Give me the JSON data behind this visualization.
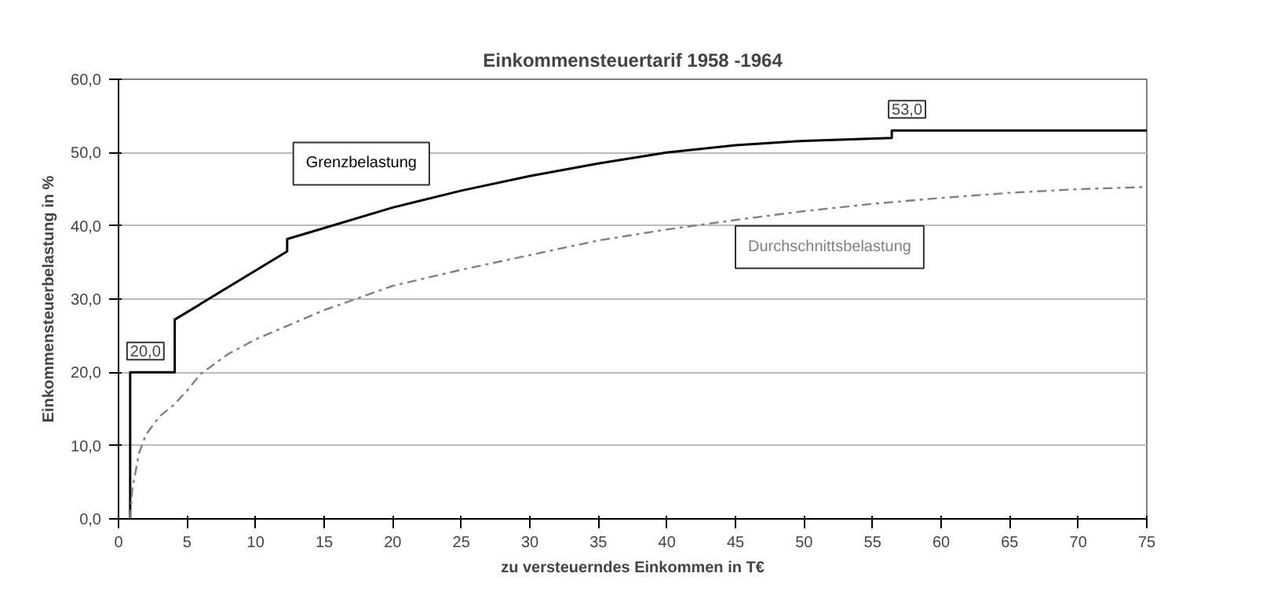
{
  "chart_data": {
    "type": "line",
    "title": "Einkommensteuertarif 1958 -1964",
    "xlabel": "zu versteuerndes Einkommen in T€",
    "ylabel": "Einkommensteuerbelastung in %",
    "xlim": [
      0,
      75
    ],
    "xticks": [
      0,
      5,
      10,
      15,
      20,
      25,
      30,
      35,
      40,
      45,
      50,
      55,
      60,
      65,
      70,
      75
    ],
    "ylim": [
      0,
      60
    ],
    "yticks": [
      {
        "value": 0,
        "label": "0,0"
      },
      {
        "value": 10,
        "label": "10,0"
      },
      {
        "value": 20,
        "label": "20,0"
      },
      {
        "value": 30,
        "label": "30,0"
      },
      {
        "value": 40,
        "label": "40,0"
      },
      {
        "value": 50,
        "label": "50,0"
      },
      {
        "value": 60,
        "label": "60,0"
      }
    ],
    "grid": "y",
    "marker": "none",
    "series": [
      {
        "name": "Grenzbelastung",
        "color": "#000000",
        "line_style": "solid",
        "x": [
          0.85,
          0.85,
          4.1,
          4.1,
          12.3,
          12.3,
          15,
          20,
          25,
          30,
          35,
          40,
          45,
          50,
          56.4,
          56.4,
          75
        ],
        "values": [
          0,
          20,
          20,
          27.2,
          36.5,
          38.2,
          39.7,
          42.5,
          44.8,
          46.8,
          48.5,
          50,
          51,
          51.6,
          52,
          53,
          53
        ]
      },
      {
        "name": "Durchschnittsbelastung",
        "color": "#808080",
        "line_style": "dashed",
        "x": [
          0.85,
          1,
          1.5,
          2,
          3,
          4,
          5,
          6,
          8,
          10,
          15,
          20,
          25,
          30,
          35,
          40,
          45,
          50,
          55,
          60,
          65,
          70,
          75
        ],
        "values": [
          0,
          4,
          9,
          11.5,
          14,
          15.5,
          17.5,
          19.8,
          22.5,
          24.5,
          28.5,
          31.8,
          34,
          36,
          38,
          39.5,
          40.8,
          42,
          43,
          43.8,
          44.5,
          45,
          45.3
        ]
      }
    ],
    "annotations": [
      {
        "text": "20,0",
        "x": 0.85,
        "y": 20
      },
      {
        "text": "53,0",
        "x": 56.4,
        "y": 53
      }
    ]
  }
}
